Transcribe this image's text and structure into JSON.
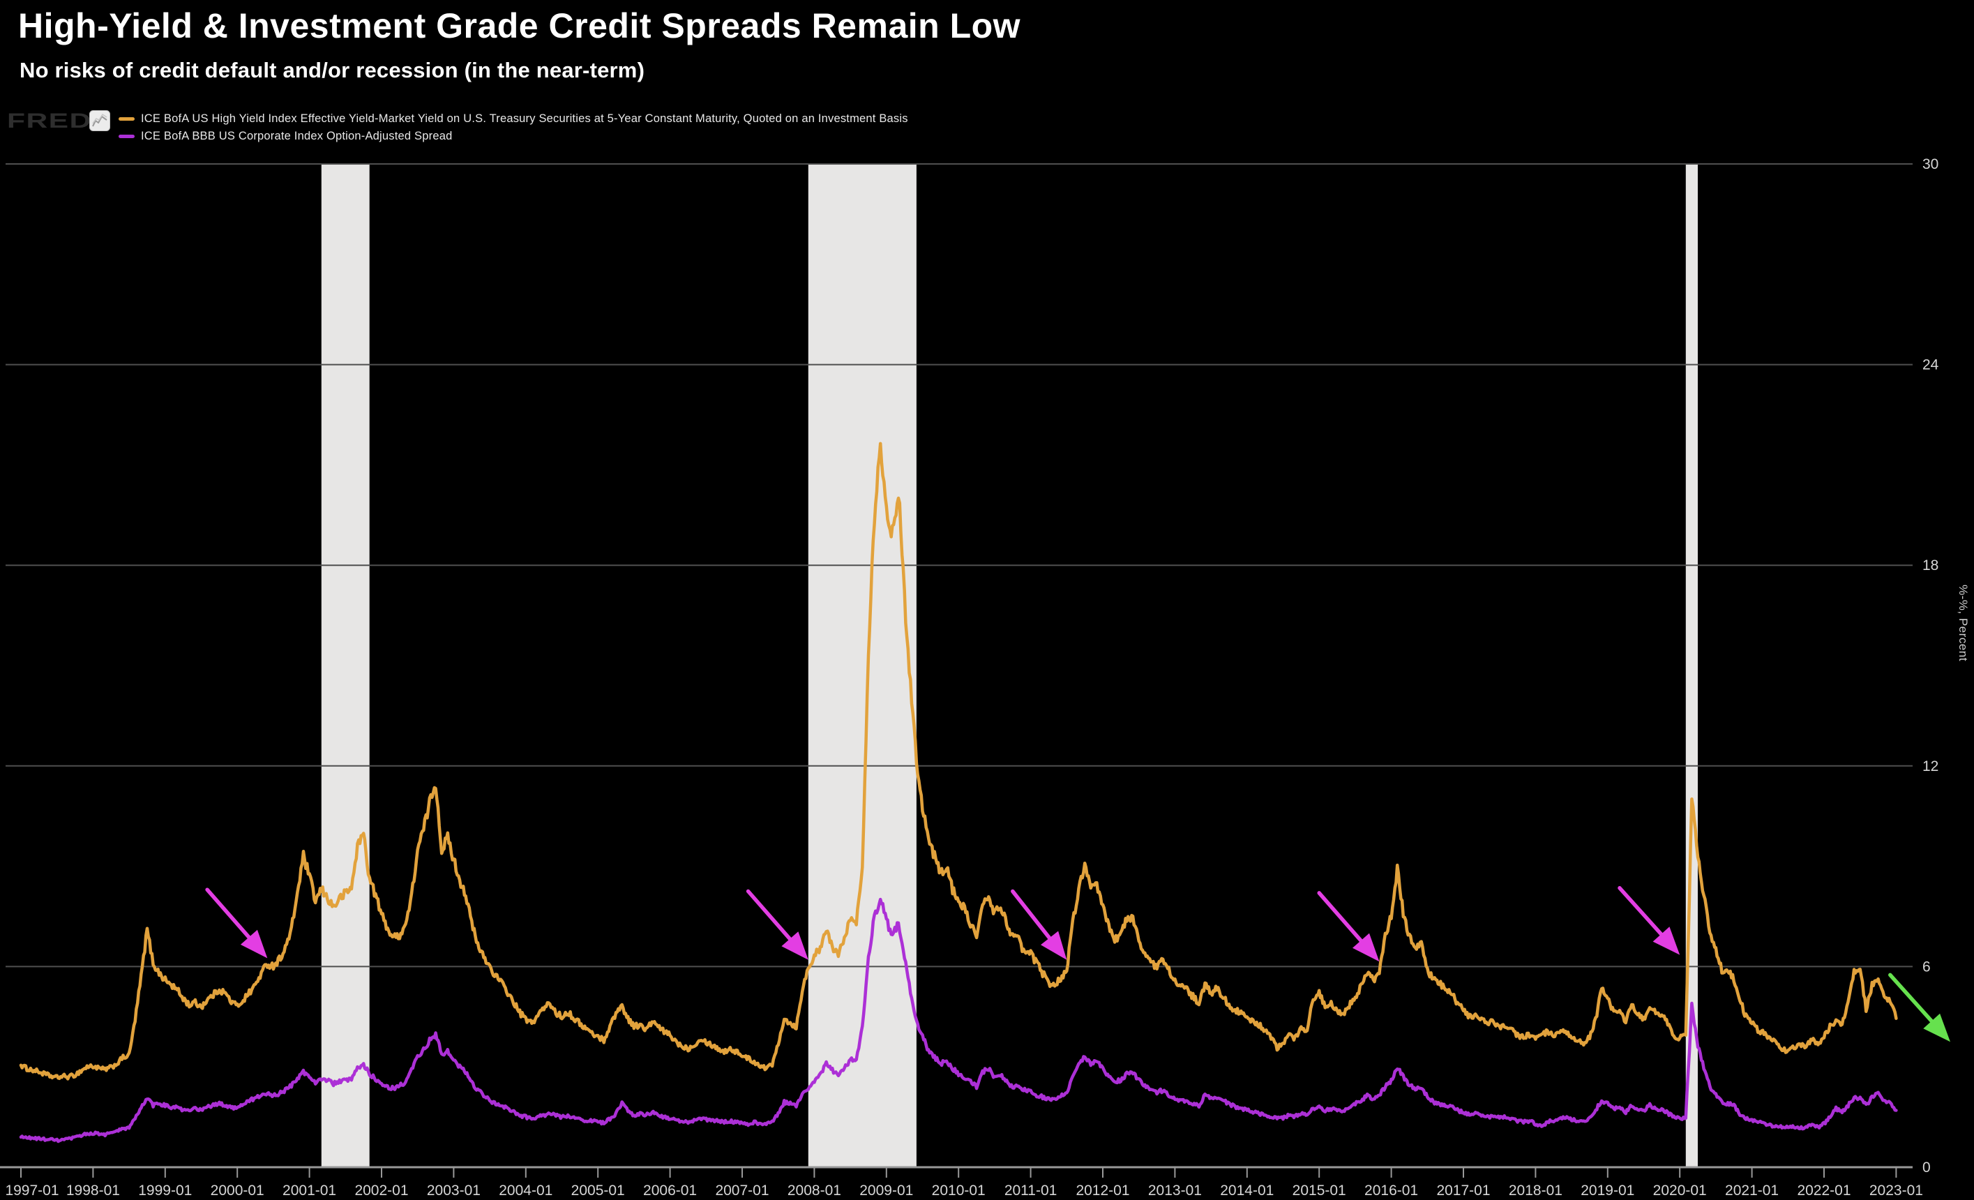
{
  "page": {
    "background": "#000000"
  },
  "header": {
    "title": "High-Yield & Investment Grade Credit Spreads Remain Low",
    "subtitle": "No risks of credit default and/or recession (in the near-term)"
  },
  "branding": {
    "logo_text": "FRED",
    "logo_icon": "line-chart-icon"
  },
  "legend": {
    "items": [
      {
        "label": "ICE BofA US High Yield Index Effective Yield-Market Yield on U.S. Treasury Securities at 5-Year Constant Maturity, Quoted on an Investment Basis",
        "color": "#E2A23C"
      },
      {
        "label": "ICE BofA BBB US Corporate Index Option-Adjusted Spread",
        "color": "#AC30D6"
      }
    ]
  },
  "chart_data": {
    "type": "line",
    "title": "High-Yield & Investment Grade Credit Spreads Remain Low",
    "x_start": "1997-01",
    "x_end": "2023-01",
    "frequency": "monthly",
    "ylim": [
      0,
      30
    ],
    "y_ticks": [
      0,
      6,
      12,
      18,
      24,
      30
    ],
    "y_unit_label": "%-%, Percent",
    "grid": "horizontal",
    "legend_position": "top-left",
    "background": "#000000",
    "band_color": "#E7E6E5",
    "grid_color": "#4f4f4f",
    "axis_color": "#999999",
    "label_color": "#d6d6d6",
    "x_tick_labels": [
      "1997-01",
      "1998-01",
      "1999-01",
      "2000-01",
      "2001-01",
      "2002-01",
      "2003-01",
      "2004-01",
      "2005-01",
      "2006-01",
      "2007-01",
      "2008-01",
      "2009-01",
      "2010-01",
      "2011-01",
      "2012-01",
      "2013-01",
      "2014-01",
      "2015-01",
      "2016-01",
      "2017-01",
      "2018-01",
      "2019-01",
      "2020-01",
      "2021-01",
      "2022-01",
      "2023-01"
    ],
    "recession_bands": [
      {
        "from": "2001-03",
        "to": "2001-11"
      },
      {
        "from": "2007-12",
        "to": "2009-06"
      },
      {
        "from": "2020-02",
        "to": "2020-04"
      }
    ],
    "series": [
      {
        "name": "ICE BofA US High Yield Index Effective Yield-Market Yield on U.S. Treasury Securities at 5-Year Constant Maturity, Quoted on an Investment Basis",
        "color": "#E2A23C",
        "values": [
          3.05,
          2.95,
          2.9,
          2.85,
          2.78,
          2.72,
          2.68,
          2.72,
          2.7,
          2.76,
          2.88,
          3.0,
          3.02,
          2.95,
          2.92,
          2.98,
          3.1,
          3.28,
          3.35,
          4.4,
          5.7,
          7.1,
          6.1,
          5.8,
          5.6,
          5.45,
          5.3,
          5.05,
          4.85,
          4.92,
          4.8,
          5.0,
          5.15,
          5.32,
          5.2,
          4.95,
          4.82,
          5.0,
          5.22,
          5.45,
          5.8,
          6.08,
          6.02,
          6.22,
          6.55,
          7.1,
          8.2,
          9.3,
          8.7,
          7.95,
          8.3,
          8.05,
          7.78,
          8.02,
          8.2,
          8.35,
          9.6,
          10.0,
          8.6,
          8.15,
          7.55,
          7.15,
          6.85,
          6.95,
          7.25,
          8.1,
          9.5,
          10.1,
          10.9,
          11.5,
          9.5,
          9.85,
          9.2,
          8.6,
          8.15,
          7.3,
          6.62,
          6.3,
          6.0,
          5.72,
          5.5,
          5.22,
          4.92,
          4.62,
          4.42,
          4.3,
          4.55,
          4.75,
          4.9,
          4.62,
          4.5,
          4.65,
          4.45,
          4.3,
          4.15,
          4.0,
          3.9,
          3.8,
          4.2,
          4.62,
          4.82,
          4.45,
          4.22,
          4.25,
          4.1,
          4.35,
          4.2,
          4.05,
          3.95,
          3.75,
          3.62,
          3.55,
          3.65,
          3.85,
          3.75,
          3.65,
          3.55,
          3.45,
          3.55,
          3.45,
          3.35,
          3.25,
          3.15,
          3.05,
          2.95,
          3.08,
          3.72,
          4.45,
          4.3,
          4.2,
          5.3,
          5.95,
          6.35,
          6.5,
          7.1,
          6.6,
          6.3,
          6.92,
          7.4,
          7.3,
          9.0,
          15.5,
          19.5,
          21.8,
          19.5,
          19.0,
          20.3,
          17.0,
          14.5,
          12.2,
          10.8,
          9.8,
          9.3,
          8.8,
          9.0,
          8.3,
          8.0,
          7.7,
          7.3,
          6.9,
          7.8,
          8.1,
          7.6,
          7.8,
          7.3,
          6.9,
          6.8,
          6.4,
          6.4,
          6.1,
          5.8,
          5.52,
          5.45,
          5.65,
          5.9,
          7.3,
          8.3,
          9.1,
          8.3,
          8.4,
          7.8,
          7.2,
          6.8,
          7.0,
          7.4,
          7.45,
          6.8,
          6.4,
          6.1,
          6.0,
          6.2,
          5.9,
          5.6,
          5.4,
          5.3,
          5.1,
          4.9,
          5.45,
          5.2,
          5.35,
          5.1,
          4.85,
          4.7,
          4.6,
          4.45,
          4.35,
          4.25,
          4.1,
          3.9,
          3.55,
          3.7,
          3.95,
          3.85,
          4.2,
          4.1,
          5.05,
          5.2,
          4.8,
          4.9,
          4.7,
          4.6,
          4.85,
          5.1,
          5.4,
          5.85,
          5.6,
          5.8,
          6.9,
          7.5,
          8.9,
          7.6,
          6.9,
          6.6,
          6.7,
          5.9,
          5.6,
          5.5,
          5.3,
          5.2,
          4.9,
          4.7,
          4.5,
          4.55,
          4.4,
          4.3,
          4.35,
          4.2,
          4.25,
          4.1,
          3.95,
          3.9,
          3.95,
          3.85,
          3.95,
          4.05,
          3.9,
          4.0,
          4.05,
          3.85,
          3.8,
          3.65,
          3.9,
          4.4,
          5.35,
          5.1,
          4.6,
          4.7,
          4.35,
          4.9,
          4.55,
          4.4,
          4.85,
          4.6,
          4.55,
          4.3,
          3.95,
          3.85,
          3.95,
          11.0,
          9.3,
          8.1,
          7.1,
          6.5,
          5.9,
          5.9,
          5.6,
          5.0,
          4.5,
          4.3,
          4.1,
          4.0,
          3.85,
          3.8,
          3.55,
          3.45,
          3.6,
          3.65,
          3.6,
          3.85,
          3.7,
          3.9,
          4.2,
          4.35,
          4.3,
          4.9,
          5.85,
          6.0,
          4.7,
          5.45,
          5.55,
          5.1,
          4.95,
          4.45
        ]
      },
      {
        "name": "ICE BofA BBB US Corporate Index Option-Adjusted Spread",
        "color": "#AC30D6",
        "values": [
          0.9,
          0.88,
          0.87,
          0.85,
          0.84,
          0.82,
          0.8,
          0.82,
          0.84,
          0.88,
          0.95,
          1.0,
          1.02,
          1.0,
          0.98,
          1.02,
          1.08,
          1.15,
          1.18,
          1.45,
          1.8,
          2.05,
          1.85,
          1.9,
          1.85,
          1.8,
          1.78,
          1.7,
          1.68,
          1.75,
          1.72,
          1.8,
          1.85,
          1.9,
          1.85,
          1.78,
          1.8,
          1.9,
          2.0,
          2.05,
          2.15,
          2.2,
          2.15,
          2.2,
          2.3,
          2.45,
          2.65,
          2.85,
          2.7,
          2.55,
          2.65,
          2.6,
          2.5,
          2.55,
          2.6,
          2.62,
          2.95,
          3.05,
          2.8,
          2.65,
          2.5,
          2.4,
          2.35,
          2.45,
          2.55,
          2.9,
          3.3,
          3.5,
          3.8,
          3.95,
          3.4,
          3.45,
          3.2,
          3.0,
          2.85,
          2.55,
          2.3,
          2.15,
          2.0,
          1.9,
          1.85,
          1.75,
          1.65,
          1.55,
          1.5,
          1.45,
          1.5,
          1.55,
          1.6,
          1.55,
          1.5,
          1.55,
          1.48,
          1.45,
          1.4,
          1.38,
          1.35,
          1.32,
          1.45,
          1.6,
          1.9,
          1.7,
          1.55,
          1.6,
          1.55,
          1.65,
          1.58,
          1.5,
          1.45,
          1.4,
          1.38,
          1.35,
          1.4,
          1.45,
          1.42,
          1.4,
          1.38,
          1.35,
          1.38,
          1.35,
          1.3,
          1.28,
          1.35,
          1.3,
          1.28,
          1.35,
          1.6,
          1.95,
          1.9,
          1.85,
          2.2,
          2.35,
          2.6,
          2.8,
          3.1,
          2.9,
          2.75,
          3.0,
          3.2,
          3.25,
          4.2,
          6.2,
          7.5,
          8.0,
          7.4,
          6.9,
          7.3,
          6.3,
          5.2,
          4.4,
          3.9,
          3.5,
          3.3,
          3.1,
          3.15,
          2.95,
          2.8,
          2.7,
          2.55,
          2.4,
          2.85,
          2.95,
          2.7,
          2.75,
          2.55,
          2.4,
          2.4,
          2.3,
          2.25,
          2.15,
          2.1,
          2.05,
          2.05,
          2.15,
          2.2,
          2.75,
          3.05,
          3.35,
          3.1,
          3.15,
          2.95,
          2.7,
          2.55,
          2.6,
          2.8,
          2.85,
          2.6,
          2.45,
          2.3,
          2.25,
          2.3,
          2.15,
          2.05,
          2.0,
          1.95,
          1.9,
          1.85,
          2.15,
          2.05,
          2.1,
          2.0,
          1.9,
          1.8,
          1.75,
          1.7,
          1.65,
          1.6,
          1.55,
          1.5,
          1.45,
          1.48,
          1.55,
          1.52,
          1.6,
          1.58,
          1.75,
          1.8,
          1.7,
          1.75,
          1.7,
          1.68,
          1.8,
          1.9,
          2.0,
          2.15,
          2.05,
          2.15,
          2.4,
          2.6,
          3.0,
          2.7,
          2.45,
          2.35,
          2.4,
          2.1,
          1.95,
          1.9,
          1.85,
          1.8,
          1.7,
          1.65,
          1.58,
          1.6,
          1.55,
          1.5,
          1.52,
          1.48,
          1.5,
          1.45,
          1.38,
          1.35,
          1.38,
          1.3,
          1.22,
          1.35,
          1.4,
          1.45,
          1.5,
          1.42,
          1.4,
          1.35,
          1.45,
          1.7,
          2.0,
          1.9,
          1.75,
          1.8,
          1.65,
          1.85,
          1.75,
          1.68,
          1.85,
          1.75,
          1.72,
          1.62,
          1.5,
          1.45,
          1.5,
          4.85,
          3.6,
          3.0,
          2.4,
          2.2,
          1.95,
          1.9,
          1.85,
          1.6,
          1.45,
          1.4,
          1.35,
          1.3,
          1.25,
          1.22,
          1.2,
          1.18,
          1.2,
          1.18,
          1.2,
          1.25,
          1.2,
          1.3,
          1.5,
          1.75,
          1.65,
          1.85,
          2.05,
          2.1,
          1.85,
          2.1,
          2.2,
          2.0,
          1.9,
          1.7
        ]
      }
    ],
    "annotations": {
      "arrows": [
        {
          "id": "magenta-arrow-1",
          "color": "#E33EE3",
          "from": {
            "date": "1999-08",
            "value": 8.3
          },
          "to": {
            "date": "2000-06",
            "value": 6.25
          }
        },
        {
          "id": "magenta-arrow-2",
          "color": "#E33EE3",
          "from": {
            "date": "2007-02",
            "value": 8.25
          },
          "to": {
            "date": "2007-12",
            "value": 6.2
          }
        },
        {
          "id": "magenta-arrow-3",
          "color": "#E33EE3",
          "from": {
            "date": "2010-10",
            "value": 8.25
          },
          "to": {
            "date": "2011-07",
            "value": 6.2
          }
        },
        {
          "id": "magenta-arrow-4",
          "color": "#E33EE3",
          "from": {
            "date": "2015-01",
            "value": 8.2
          },
          "to": {
            "date": "2015-11",
            "value": 6.15
          }
        },
        {
          "id": "magenta-arrow-5",
          "color": "#E33EE3",
          "from": {
            "date": "2019-03",
            "value": 8.35
          },
          "to": {
            "date": "2020-01",
            "value": 6.35
          }
        },
        {
          "id": "green-arrow-1",
          "color": "#66E14E",
          "from": {
            "date": "2022-12",
            "value": 5.75
          },
          "to": {
            "date": "2023-10",
            "value": 3.75
          }
        }
      ]
    }
  }
}
